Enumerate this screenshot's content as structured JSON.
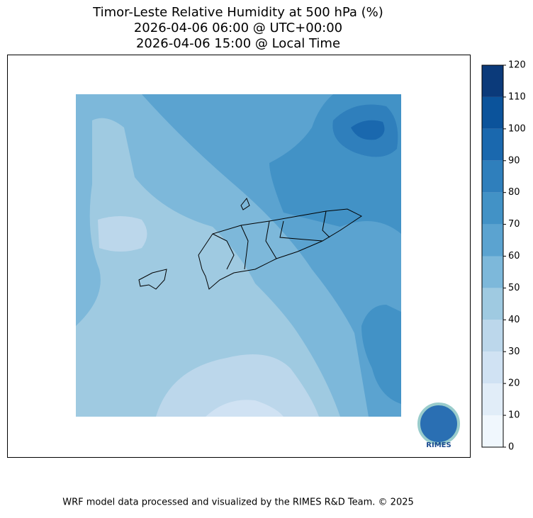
{
  "chart_data": {
    "type": "contour-map",
    "title": [
      "Timor-Leste Relative Humidity at 500 hPa (%)",
      "2026-04-06 06:00 @ UTC+00:00",
      "2026-04-06 15:00 @ Local Time"
    ],
    "colorbar": {
      "lim": [
        0,
        120
      ],
      "ticks": [
        0,
        10,
        20,
        30,
        40,
        50,
        60,
        70,
        80,
        90,
        100,
        110,
        120
      ],
      "colors": [
        "#f0f7fd",
        "#e1edf8",
        "#d0e2f3",
        "#bcd7eb",
        "#9fcae1",
        "#7db8da",
        "#5ba3d0",
        "#4292c6",
        "#2f7fbc",
        "#1a68ae",
        "#0b539b",
        "#0b3a7a"
      ]
    },
    "logo": "RIMES",
    "footer": "WRF model data processed and visualized by the RIMES R&D Team. © 2025"
  }
}
